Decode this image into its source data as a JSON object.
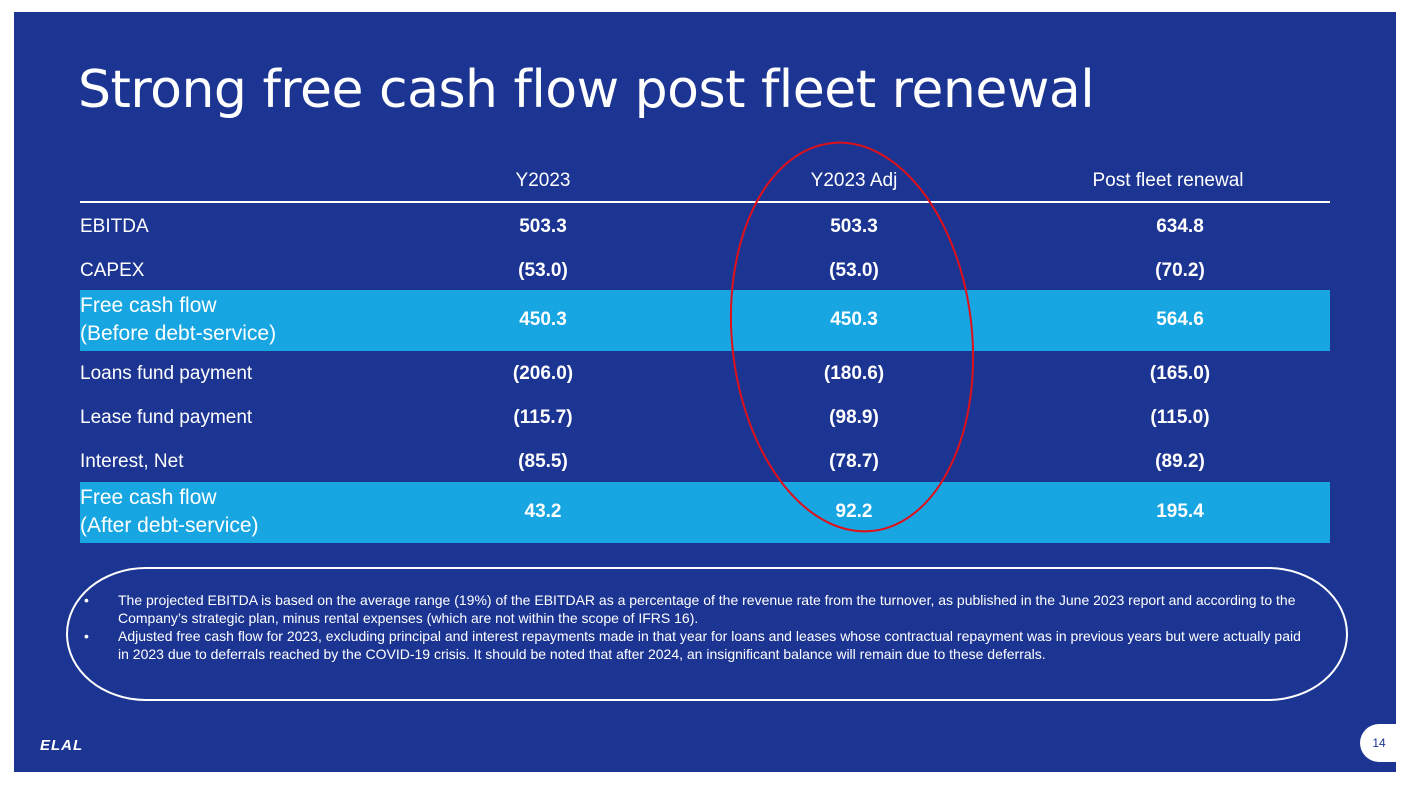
{
  "slide": {
    "title": "Strong free cash flow post fleet renewal",
    "page_number": "14",
    "logo_text": "ELAL",
    "accent_color": "#17a6e2",
    "background_color": "#1c3593",
    "highlight_color": "#e0101a"
  },
  "table": {
    "columns": [
      "Y2023",
      "Y2023 Adj",
      "Post fleet renewal"
    ],
    "rows": [
      {
        "label": "EBITDA",
        "values": [
          "503.3",
          "503.3",
          "634.8"
        ]
      },
      {
        "label": "CAPEX",
        "values": [
          "(53.0)",
          "(53.0)",
          "(70.2)"
        ]
      },
      {
        "label_line1": "Free cash flow",
        "label_line2": "(Before debt-service)",
        "values": [
          "450.3",
          "450.3",
          "564.6"
        ]
      },
      {
        "label": "Loans fund payment",
        "values": [
          "(206.0)",
          "(180.6)",
          "(165.0)"
        ]
      },
      {
        "label": "Lease fund payment",
        "values": [
          "(115.7)",
          "(98.9)",
          "(115.0)"
        ]
      },
      {
        "label": "Interest, Net",
        "values": [
          "(85.5)",
          "(78.7)",
          "(89.2)"
        ]
      },
      {
        "label_line1": "Free cash flow",
        "label_line2": "(After debt-service)",
        "values": [
          "43.2",
          "92.2",
          "195.4"
        ]
      }
    ]
  },
  "notes": {
    "bullet": "•",
    "items": [
      "The projected EBITDA is based on the average range (19%) of the EBITDAR as a percentage of the revenue rate from the turnover, as published in the June 2023 report and according to the Company’s strategic plan, minus rental expenses (which are not within the scope of IFRS 16).",
      "Adjusted free cash flow for 2023, excluding principal and interest repayments made in that year for loans and leases whose contractual repayment was in previous years but were actually paid in 2023 due to deferrals reached by the COVID-19 crisis. It should be noted that after 2024, an insignificant balance will remain due to these deferrals."
    ]
  }
}
